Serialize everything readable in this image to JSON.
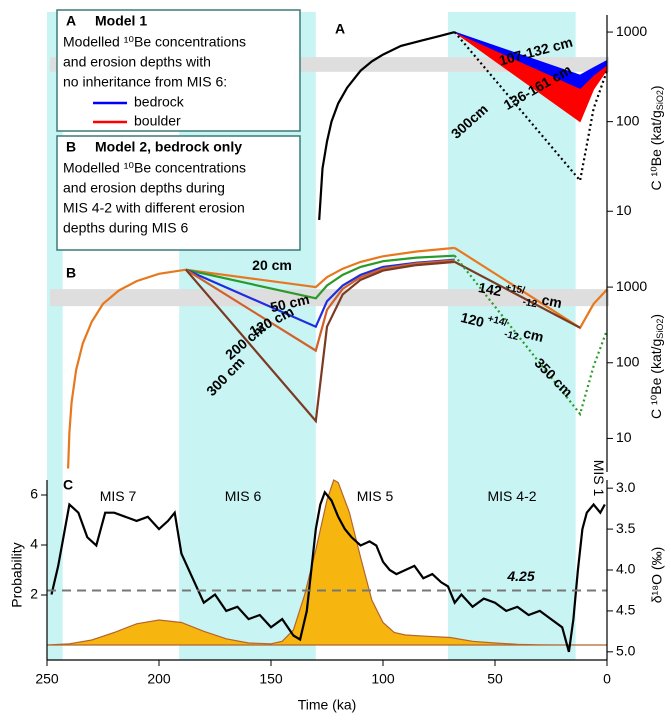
{
  "shaded_periods": [
    [
      250,
      243
    ],
    [
      191,
      130
    ],
    [
      71,
      14
    ]
  ],
  "shade_color": "#c8f4f4",
  "chart_data": [
    {
      "type": "line",
      "panel_label": "A",
      "log_y": true,
      "xlim": [
        250,
        0
      ],
      "ylim": [
        4.2,
        1550
      ],
      "yticks": [
        10,
        100,
        1000
      ],
      "ylabel": "C ¹⁰Be (kat/g",
      "ylabel_sub": "SiO2",
      "ylabel_end": ")",
      "band": {
        "range": [
          360,
          525
        ],
        "color": "#dedede"
      },
      "legend_title": "Model 1",
      "legend_text": [
        "Modelled ¹⁰Be concentrations",
        "and erosion depths with",
        "no inheritance from MIS 6:"
      ],
      "series": [
        {
          "color": "#000000",
          "style": "solid",
          "x": [
            128.5,
            127,
            125,
            123,
            120,
            116,
            110,
            105,
            100,
            92,
            83,
            75,
            68
          ],
          "values": [
            8,
            30,
            60,
            100,
            160,
            240,
            370,
            470,
            560,
            700,
            800,
            900,
            1000
          ]
        },
        {
          "color": "#000000",
          "style": "dotted",
          "x": [
            68,
            12,
            6,
            0
          ],
          "values": [
            1000,
            22,
            140,
            370
          ]
        }
      ],
      "bands": [
        {
          "name": "bedrock",
          "color": "#0000ff",
          "x": [
            68,
            12,
            6,
            0
          ],
          "high": [
            1000,
            330,
            400,
            480
          ],
          "low": [
            1000,
            235,
            330,
            430
          ]
        },
        {
          "name": "boulder",
          "color": "#ff0000",
          "x": [
            68,
            12,
            6,
            0
          ],
          "high": [
            1000,
            235,
            330,
            430
          ],
          "low": [
            1000,
            100,
            230,
            380
          ]
        }
      ],
      "annotations": [
        {
          "text": "107-132 cm",
          "color": "#0000ff"
        },
        {
          "text": "136-161 cm",
          "color": "#ff0000"
        },
        {
          "text": "300cm",
          "color": "#7b3a22"
        }
      ]
    },
    {
      "type": "line",
      "panel_label": "B",
      "log_y": true,
      "xlim": [
        250,
        0
      ],
      "ylim": [
        3.6,
        3600
      ],
      "yticks": [
        10,
        100,
        1000
      ],
      "ylabel": "C ¹⁰Be (kat/g",
      "ylabel_sub": "SiO2",
      "ylabel_end": ")",
      "band": {
        "range": [
          560,
          940
        ],
        "color": "#dedede"
      },
      "legend_title": "Model 2, bedrock only",
      "legend_text": [
        "Modelled ¹⁰Be concentrations",
        "and erosion depths during",
        "MIS 4-2 with different erosion",
        "depths during  MIS 6"
      ],
      "series": [
        {
          "color": "#e8781e",
          "style": "solid",
          "x": [
            240.6,
            240,
            239,
            237,
            234,
            230,
            225,
            218,
            210,
            200,
            188,
            130,
            125,
            118,
            110,
            100,
            85,
            68
          ],
          "values": [
            4,
            12,
            30,
            80,
            180,
            350,
            600,
            900,
            1200,
            1500,
            1700,
            1000,
            1350,
            1750,
            2150,
            2550,
            2950,
            3300
          ]
        },
        {
          "color": "#2a9a2a",
          "style": "solid",
          "x": [
            188,
            130,
            125,
            118,
            110,
            100,
            85,
            68
          ],
          "values": [
            1700,
            710,
            1050,
            1450,
            1850,
            2200,
            2450,
            2600
          ]
        },
        {
          "color": "#1c2ee0",
          "style": "solid",
          "x": [
            188,
            130,
            125,
            118,
            110,
            100,
            85,
            68
          ],
          "values": [
            1700,
            300,
            650,
            1050,
            1450,
            1850,
            2100,
            2300
          ]
        },
        {
          "color": "#d2602a",
          "style": "solid",
          "x": [
            188,
            130,
            125,
            118,
            110,
            100,
            85,
            68
          ],
          "values": [
            1700,
            145,
            500,
            950,
            1350,
            1750,
            2050,
            2250
          ]
        },
        {
          "color": "#7b3a22",
          "style": "solid",
          "x": [
            188,
            130,
            125,
            118,
            110,
            100,
            85,
            68
          ],
          "values": [
            1700,
            17,
            300,
            800,
            1250,
            1650,
            1950,
            2150
          ]
        },
        {
          "color": "#e8781e",
          "style": "solid",
          "x": [
            68,
            12,
            6,
            0
          ],
          "values": [
            3300,
            290,
            600,
            930
          ]
        },
        {
          "color": "#7b3a22",
          "style": "solid",
          "x": [
            68,
            12
          ],
          "values": [
            2150,
            290
          ]
        },
        {
          "color": "#2a9a2a",
          "style": "dotted",
          "x": [
            68,
            12,
            6,
            0
          ],
          "values": [
            2600,
            21,
            90,
            270
          ]
        }
      ],
      "annotations": [
        {
          "text": "20 cm",
          "color": "#e8781e"
        },
        {
          "text": "50 cm",
          "color": "#2a9a2a"
        },
        {
          "text": "120 cm",
          "color": "#1c2ee0"
        },
        {
          "text": "200 cm",
          "color": "#d2602a"
        },
        {
          "text": "300 cm",
          "color": "#7b3a22"
        },
        {
          "text": "142",
          "sup": "+15/",
          "sub": "-12",
          "unit": "cm",
          "color": "#e8781e"
        },
        {
          "text": "120",
          "sup": "+14/",
          "sub": "-12",
          "unit": "cm",
          "color": "#7b3a22"
        },
        {
          "text": "350 cm",
          "color": "#2a9a2a"
        }
      ]
    },
    {
      "type": "area",
      "panel_label": "C",
      "xlim": [
        250,
        0
      ],
      "xticks": [
        250,
        200,
        150,
        100,
        50,
        0
      ],
      "xlabel": "Time (ka)",
      "ylim": [
        -0.6,
        6.6
      ],
      "yticks": [
        2,
        4,
        6
      ],
      "ylabel": "Probability",
      "y2lim": [
        5.1,
        2.9
      ],
      "y2ticks": [
        {
          "value": 3.0,
          "label": "3.0"
        },
        {
          "value": 3.5,
          "label": "3.5"
        },
        {
          "value": 4.0,
          "label": "4.0"
        },
        {
          "value": 4.5,
          "label": "4.5"
        },
        {
          "value": 5.0,
          "label": "5.0"
        }
      ],
      "y2label": "δ¹⁸O (‰)",
      "hline": {
        "value": 4.25,
        "axis": "y2",
        "color": "#777777"
      },
      "series": [
        {
          "color": "#f6b60f",
          "fill": true,
          "x": [
            250,
            240,
            230,
            220,
            210,
            200,
            190,
            180,
            170,
            160,
            150,
            145,
            140,
            135,
            130,
            125,
            122,
            120,
            115,
            110,
            105,
            100,
            95,
            90,
            80,
            70,
            60,
            50,
            40,
            30,
            20,
            10,
            0
          ],
          "values": [
            0,
            0.05,
            0.2,
            0.5,
            0.85,
            1.0,
            0.9,
            0.55,
            0.25,
            0.08,
            0.05,
            0.15,
            0.6,
            2.0,
            3.8,
            5.8,
            6.6,
            6.5,
            5.3,
            3.5,
            1.8,
            0.9,
            0.5,
            0.4,
            0.35,
            0.3,
            0.15,
            0.08,
            0.03,
            0.01,
            0,
            0,
            0
          ]
        },
        {
          "color": "#000000",
          "axis": "y2",
          "x": [
            248,
            245,
            240,
            236,
            232,
            228,
            224,
            220,
            215,
            210,
            205,
            200,
            196,
            193,
            190,
            185,
            180,
            175,
            170,
            165,
            160,
            155,
            150,
            145,
            140,
            137,
            134,
            132,
            130,
            128,
            126,
            123,
            120,
            117,
            114,
            110,
            106,
            103,
            100,
            97,
            94,
            90,
            86,
            82,
            78,
            74,
            71,
            68,
            65,
            60,
            55,
            50,
            45,
            40,
            35,
            30,
            25,
            20,
            17,
            15,
            13,
            11,
            9,
            6,
            3,
            1
          ],
          "values": [
            4.3,
            3.95,
            3.2,
            3.3,
            3.6,
            3.7,
            3.3,
            3.3,
            3.35,
            3.4,
            3.35,
            3.5,
            3.4,
            3.3,
            3.8,
            4.1,
            4.4,
            4.3,
            4.5,
            4.45,
            4.6,
            4.55,
            4.7,
            4.6,
            4.8,
            4.85,
            4.5,
            4.0,
            3.5,
            3.2,
            3.05,
            3.15,
            3.35,
            3.5,
            3.6,
            3.7,
            3.65,
            3.7,
            3.9,
            4.0,
            4.05,
            4.0,
            3.95,
            4.1,
            4.05,
            4.15,
            4.2,
            4.4,
            4.3,
            4.45,
            4.35,
            4.4,
            4.5,
            4.45,
            4.55,
            4.5,
            4.6,
            4.7,
            5.0,
            4.6,
            4.0,
            3.5,
            3.3,
            3.2,
            3.3,
            3.2
          ]
        }
      ],
      "annotations": [
        {
          "text": "MIS 7"
        },
        {
          "text": "MIS 6"
        },
        {
          "text": "MIS 5"
        },
        {
          "text": "MIS 4-2"
        },
        {
          "text": "MIS 1"
        }
      ]
    }
  ]
}
